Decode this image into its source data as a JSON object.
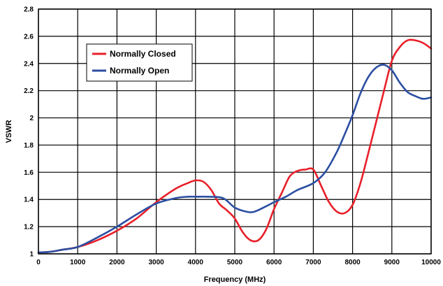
{
  "chart_data": {
    "type": "line",
    "title": "",
    "xlabel": "Frequency (MHz)",
    "ylabel": "VSWR",
    "xlim": [
      0,
      10000
    ],
    "ylim": [
      1,
      2.8
    ],
    "xticks": [
      0,
      1000,
      2000,
      3000,
      4000,
      5000,
      6000,
      7000,
      8000,
      9000,
      10000
    ],
    "yticks": [
      1,
      1.2,
      1.4,
      1.6,
      1.8,
      2,
      2.2,
      2.4,
      2.6,
      2.8
    ],
    "xtick_labels": [
      "0",
      "1000",
      "2000",
      "3000",
      "4000",
      "5000",
      "6000",
      "7000",
      "8000",
      "9000",
      "10000"
    ],
    "ytick_labels": [
      "1",
      "1.2",
      "1.4",
      "1.6",
      "1.8",
      "2",
      "2.2",
      "2.4",
      "2.6",
      "2.8"
    ],
    "grid": true,
    "legend_position": "top-left",
    "series": [
      {
        "name": "Normally Closed",
        "color": "#e8202a",
        "points": [
          [
            0,
            1.01
          ],
          [
            300,
            1.015
          ],
          [
            600,
            1.03
          ],
          [
            1000,
            1.05
          ],
          [
            1500,
            1.1
          ],
          [
            2000,
            1.17
          ],
          [
            2500,
            1.26
          ],
          [
            3000,
            1.38
          ],
          [
            3500,
            1.48
          ],
          [
            3800,
            1.52
          ],
          [
            4000,
            1.54
          ],
          [
            4200,
            1.53
          ],
          [
            4400,
            1.47
          ],
          [
            4600,
            1.37
          ],
          [
            4800,
            1.32
          ],
          [
            5000,
            1.26
          ],
          [
            5200,
            1.16
          ],
          [
            5400,
            1.1
          ],
          [
            5600,
            1.1
          ],
          [
            5800,
            1.18
          ],
          [
            6000,
            1.33
          ],
          [
            6200,
            1.45
          ],
          [
            6400,
            1.57
          ],
          [
            6600,
            1.61
          ],
          [
            6800,
            1.62
          ],
          [
            7000,
            1.62
          ],
          [
            7200,
            1.5
          ],
          [
            7400,
            1.38
          ],
          [
            7600,
            1.31
          ],
          [
            7800,
            1.3
          ],
          [
            8000,
            1.36
          ],
          [
            8200,
            1.52
          ],
          [
            8400,
            1.74
          ],
          [
            8600,
            1.97
          ],
          [
            8800,
            2.2
          ],
          [
            9000,
            2.42
          ],
          [
            9200,
            2.52
          ],
          [
            9400,
            2.57
          ],
          [
            9600,
            2.57
          ],
          [
            9800,
            2.55
          ],
          [
            10000,
            2.51
          ]
        ]
      },
      {
        "name": "Normally Open",
        "color": "#2b4ea2",
        "points": [
          [
            0,
            1.01
          ],
          [
            300,
            1.015
          ],
          [
            600,
            1.03
          ],
          [
            1000,
            1.05
          ],
          [
            1500,
            1.12
          ],
          [
            2000,
            1.2
          ],
          [
            2500,
            1.29
          ],
          [
            3000,
            1.37
          ],
          [
            3500,
            1.41
          ],
          [
            3800,
            1.42
          ],
          [
            4000,
            1.42
          ],
          [
            4300,
            1.42
          ],
          [
            4700,
            1.41
          ],
          [
            5000,
            1.34
          ],
          [
            5300,
            1.31
          ],
          [
            5500,
            1.31
          ],
          [
            5800,
            1.35
          ],
          [
            6000,
            1.38
          ],
          [
            6300,
            1.42
          ],
          [
            6600,
            1.47
          ],
          [
            7000,
            1.52
          ],
          [
            7300,
            1.6
          ],
          [
            7600,
            1.75
          ],
          [
            7800,
            1.88
          ],
          [
            8000,
            2.02
          ],
          [
            8200,
            2.18
          ],
          [
            8400,
            2.3
          ],
          [
            8600,
            2.37
          ],
          [
            8800,
            2.39
          ],
          [
            9000,
            2.35
          ],
          [
            9200,
            2.26
          ],
          [
            9400,
            2.19
          ],
          [
            9600,
            2.16
          ],
          [
            9800,
            2.14
          ],
          [
            10000,
            2.15
          ]
        ]
      }
    ]
  }
}
